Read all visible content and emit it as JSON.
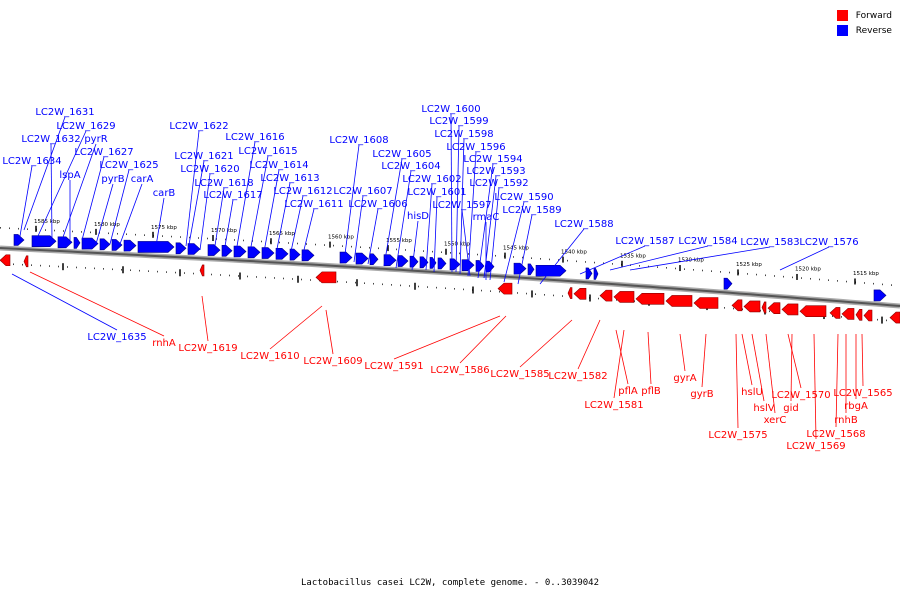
{
  "legend": {
    "forward_label": "Forward",
    "reverse_label": "Reverse",
    "forward_color": "#ff0000",
    "reverse_color": "#0000ff"
  },
  "caption": "Lactobacillus casei LC2W, complete genome. - 0..3039042",
  "scale_labels": [
    "1585 kbp",
    "1580 kbp",
    "1575 kbp",
    "1570 kbp",
    "1565 kbp",
    "1560 kbp",
    "1555 kbp",
    "1550 kbp",
    "1545 kbp",
    "1540 kbp",
    "1535 kbp",
    "1530 kbp",
    "1525 kbp",
    "1520 kbp",
    "1515 kbp"
  ],
  "reverse_genes": [
    "LC2W_1631",
    "LC2W_1629",
    "LC2W_1632",
    "pyrR",
    "LC2W_1634",
    "LC2W_1627",
    "lspA",
    "pyrB",
    "LC2W_1625",
    "carA",
    "carB",
    "LC2W_1622",
    "LC2W_1621",
    "LC2W_1620",
    "LC2W_1618",
    "LC2W_1617",
    "LC2W_1616",
    "LC2W_1615",
    "LC2W_1614",
    "LC2W_1613",
    "LC2W_1612",
    "LC2W_1611",
    "LC2W_1608",
    "LC2W_1607",
    "LC2W_1606",
    "LC2W_1605",
    "LC2W_1604",
    "hisD",
    "LC2W_1602",
    "LC2W_1601",
    "LC2W_1600",
    "LC2W_1599",
    "LC2W_1598",
    "LC2W_1597",
    "LC2W_1596",
    "LC2W_1594",
    "LC2W_1593",
    "rmaC",
    "LC2W_1592",
    "LC2W_1590",
    "LC2W_1589",
    "LC2W_1588",
    "LC2W_1587",
    "LC2W_1584",
    "LC2W_1583",
    "LC2W_1576",
    "LC2W_1635"
  ],
  "forward_genes": [
    "rnhA",
    "LC2W_1619",
    "LC2W_1610",
    "LC2W_1609",
    "LC2W_1591",
    "LC2W_1586",
    "LC2W_1585",
    "LC2W_1582",
    "pflA",
    "LC2W_1581",
    "pflB",
    "gyrA",
    "gyrB",
    "hslU",
    "hslV",
    "LC2W_1575",
    "xerC",
    "LC2W_1570",
    "gid",
    "LC2W_1569",
    "LC2W_1568",
    "rnhB",
    "rbgA",
    "LC2W_1565"
  ]
}
